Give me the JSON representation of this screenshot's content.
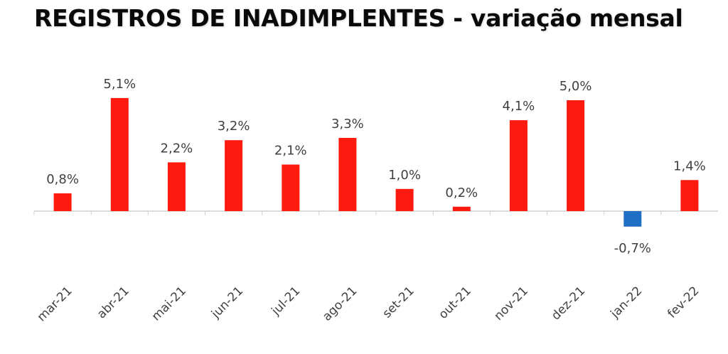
{
  "title": "REGISTROS DE INADIMPLENTES - variação mensal",
  "chart_data": {
    "type": "bar",
    "title": "REGISTROS DE INADIMPLENTES - variação mensal",
    "categories": [
      "mar-21",
      "abr-21",
      "mai-21",
      "jun-21",
      "jul-21",
      "ago-21",
      "set-21",
      "out-21",
      "nov-21",
      "dez-21",
      "jan-22",
      "fev-22"
    ],
    "values": [
      0.8,
      5.1,
      2.2,
      3.2,
      2.1,
      3.3,
      1.0,
      0.2,
      4.1,
      5.0,
      -0.7,
      1.4
    ],
    "value_labels": [
      "0,8%",
      "5,1%",
      "2,2%",
      "3,2%",
      "2,1%",
      "3,3%",
      "1,0%",
      "0,2%",
      "4,1%",
      "5,0%",
      "-0,7%",
      "1,4%"
    ],
    "unit": "%",
    "colors": {
      "positive": "#ff1a0f",
      "negative": "#1f6fc4",
      "axis": "#d0d0d0"
    },
    "grid": false,
    "legend": "none"
  }
}
